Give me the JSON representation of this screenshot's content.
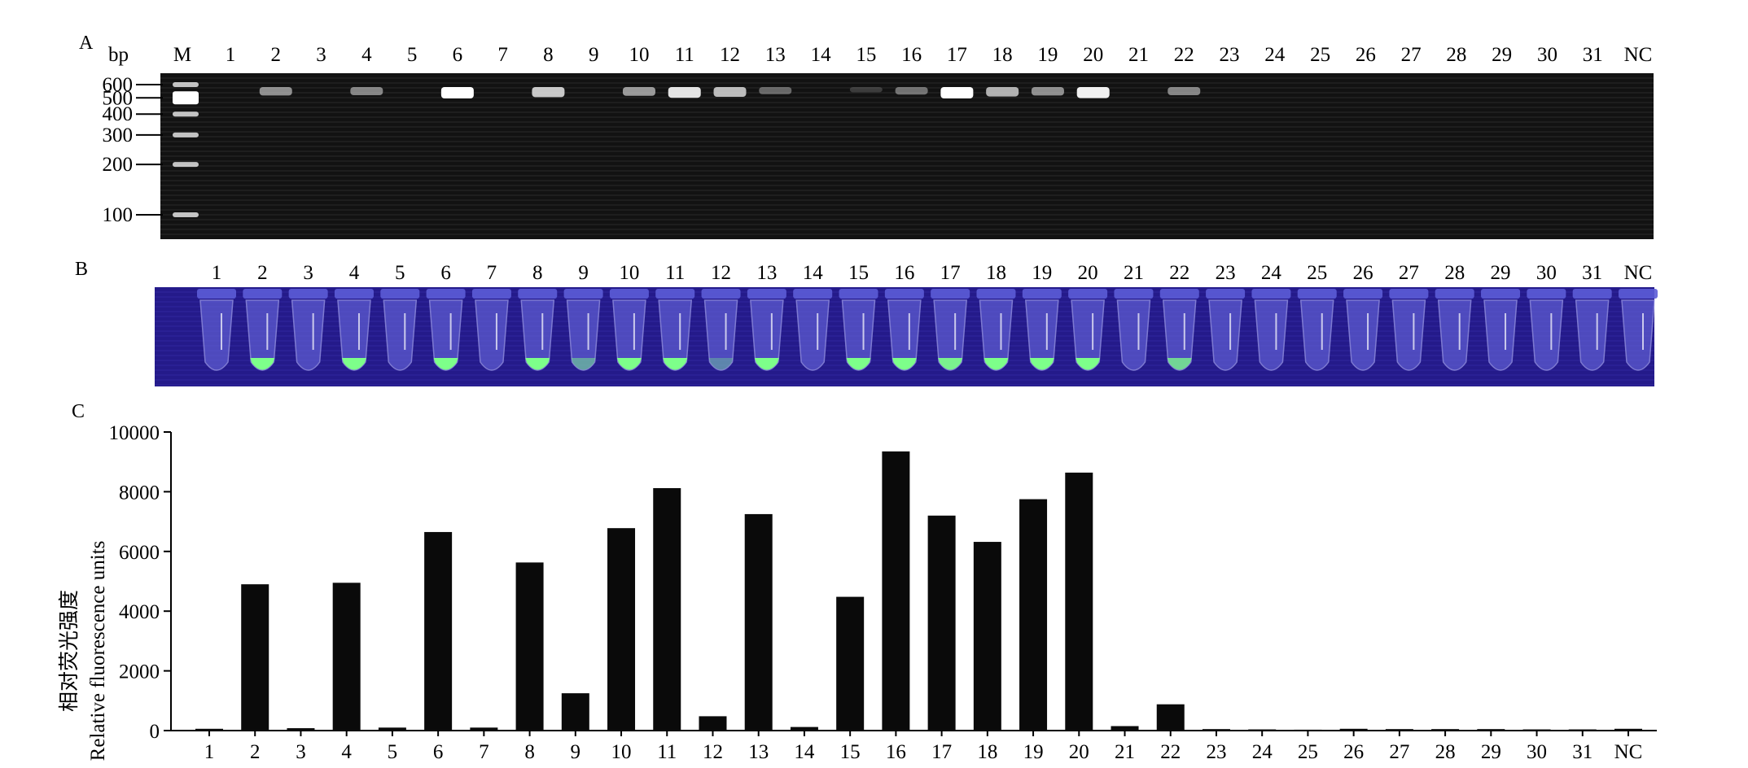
{
  "panel_labels": {
    "a": "A",
    "b": "B",
    "c": "C"
  },
  "gel": {
    "unit_label": "bp",
    "marker_label": "M",
    "lanes": [
      "1",
      "2",
      "3",
      "4",
      "5",
      "6",
      "7",
      "8",
      "9",
      "10",
      "11",
      "12",
      "13",
      "14",
      "15",
      "16",
      "17",
      "18",
      "19",
      "20",
      "21",
      "22",
      "23",
      "24",
      "25",
      "26",
      "27",
      "28",
      "29",
      "30",
      "31",
      "NC"
    ],
    "ladder_sizes": [
      "600",
      "500",
      "400",
      "300",
      "200",
      "100"
    ],
    "band_intensity": [
      0,
      0.55,
      0,
      0.5,
      0,
      1,
      0,
      0.8,
      0,
      0.6,
      0.9,
      0.75,
      0.35,
      0,
      0.05,
      0.4,
      1,
      0.7,
      0.55,
      0.95,
      0,
      0.5,
      0,
      0,
      0,
      0,
      0,
      0,
      0,
      0,
      0,
      0
    ]
  },
  "tubes": {
    "lanes": [
      "1",
      "2",
      "3",
      "4",
      "5",
      "6",
      "7",
      "8",
      "9",
      "10",
      "11",
      "12",
      "13",
      "14",
      "15",
      "16",
      "17",
      "18",
      "19",
      "20",
      "21",
      "22",
      "23",
      "24",
      "25",
      "26",
      "27",
      "28",
      "29",
      "30",
      "31",
      "NC"
    ],
    "fluorescence": [
      0,
      1,
      0,
      1,
      0,
      1,
      0,
      1,
      0.3,
      1,
      1,
      0.1,
      1,
      0,
      1,
      1,
      0.9,
      1,
      1,
      1,
      0,
      0.7,
      0,
      0,
      0,
      0,
      0,
      0,
      0,
      0,
      0,
      0
    ]
  },
  "chart_data": {
    "type": "bar",
    "categories": [
      "1",
      "2",
      "3",
      "4",
      "5",
      "6",
      "7",
      "8",
      "9",
      "10",
      "11",
      "12",
      "13",
      "14",
      "15",
      "16",
      "17",
      "18",
      "19",
      "20",
      "21",
      "22",
      "23",
      "24",
      "25",
      "26",
      "27",
      "28",
      "29",
      "30",
      "31",
      "NC"
    ],
    "values": [
      60,
      4900,
      80,
      4950,
      100,
      6650,
      100,
      5630,
      1250,
      6780,
      8120,
      480,
      7250,
      120,
      4480,
      9350,
      7200,
      6320,
      7750,
      8640,
      150,
      880,
      50,
      40,
      30,
      60,
      50,
      50,
      50,
      40,
      40,
      60
    ],
    "ylabel_cn": "相对荧光强度",
    "ylabel_en": "Relative fluorescence units",
    "ylim": [
      0,
      10000
    ],
    "yticks": [
      "0",
      "2000",
      "4000",
      "6000",
      "8000",
      "10000"
    ],
    "bar_color": "#0a0a0a"
  }
}
